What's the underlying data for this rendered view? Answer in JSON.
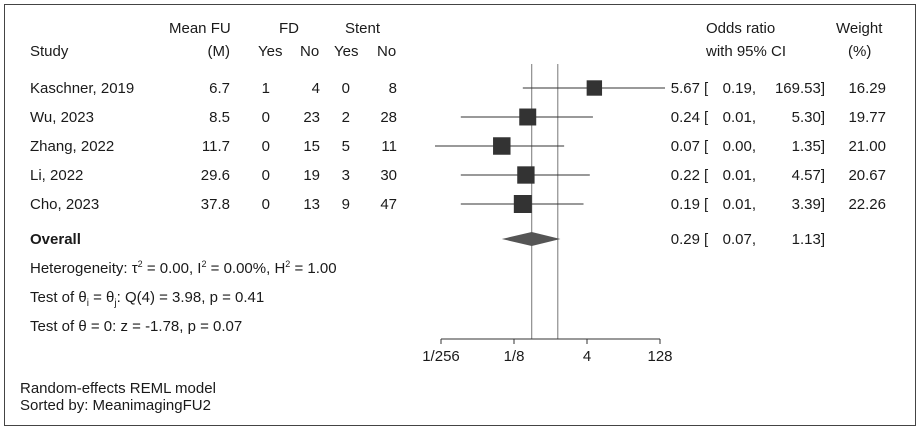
{
  "header": {
    "group_meanfu": "Mean FU",
    "group_fd": "FD",
    "group_stent": "Stent",
    "study": "Study",
    "meanfu_unit": "(M)",
    "yes": "Yes",
    "no": "No",
    "or_title": "Odds ratio",
    "or_subtitle": "with 95% CI",
    "weight_title": "Weight",
    "weight_unit": "(%)"
  },
  "rows": [
    {
      "study": "Kaschner, 2019",
      "mean_fu": "6.7",
      "fd_yes": "1",
      "fd_no": "4",
      "stent_yes": "0",
      "stent_no": "8",
      "or": "5.67",
      "ci_low": "0.19,",
      "ci_high": "169.53]",
      "weight": "16.29"
    },
    {
      "study": "Wu, 2023",
      "mean_fu": "8.5",
      "fd_yes": "0",
      "fd_no": "23",
      "stent_yes": "2",
      "stent_no": "28",
      "or": "0.24",
      "ci_low": "0.01,",
      "ci_high": "5.30]",
      "weight": "19.77"
    },
    {
      "study": "Zhang, 2022",
      "mean_fu": "11.7",
      "fd_yes": "0",
      "fd_no": "15",
      "stent_yes": "5",
      "stent_no": "11",
      "or": "0.07",
      "ci_low": "0.00,",
      "ci_high": "1.35]",
      "weight": "21.00"
    },
    {
      "study": "Li, 2022",
      "mean_fu": "29.6",
      "fd_yes": "0",
      "fd_no": "19",
      "stent_yes": "3",
      "stent_no": "30",
      "or": "0.22",
      "ci_low": "0.01,",
      "ci_high": "4.57]",
      "weight": "20.67"
    },
    {
      "study": "Cho, 2023",
      "mean_fu": "37.8",
      "fd_yes": "0",
      "fd_no": "13",
      "stent_yes": "9",
      "stent_no": "47",
      "or": "0.19",
      "ci_low": "0.01,",
      "ci_high": "3.39]",
      "weight": "22.26"
    }
  ],
  "overall": {
    "label": "Overall",
    "or": "0.29",
    "ci_low": "0.07,",
    "ci_high": "1.13]"
  },
  "stats": {
    "heterogeneity_a": "Heterogeneity: τ",
    "heterogeneity_b": " = 0.00, I",
    "heterogeneity_c": " = 0.00%, H",
    "heterogeneity_d": " = 1.00",
    "sq": "2",
    "test_theta_a": "Test of θ",
    "test_theta_i": "i",
    "test_theta_b": " = θ",
    "test_theta_j": "j",
    "test_theta_c": ": Q(4) = 3.98, p = 0.41",
    "test_zero": "Test of θ = 0: z = -1.78, p = 0.07"
  },
  "footer": {
    "model": "Random-effects REML model",
    "sorted": "Sorted by: MeanimagingFU2"
  },
  "chart_data": {
    "type": "forest",
    "x_scale": "log2",
    "x_ticks": [
      {
        "value": 0.00390625,
        "label": "1/256"
      },
      {
        "value": 0.125,
        "label": "1/8"
      },
      {
        "value": 4,
        "label": "4"
      },
      {
        "value": 128,
        "label": "128"
      }
    ],
    "xlim": [
      0.0025,
      200
    ],
    "null_line": 1,
    "overall_line": 0.29,
    "studies": [
      {
        "or": 5.67,
        "lo": 0.19,
        "hi": 169.53,
        "weight": 16.29
      },
      {
        "or": 0.24,
        "lo": 0.01,
        "hi": 5.3,
        "weight": 19.77
      },
      {
        "or": 0.07,
        "lo": 0.0028,
        "hi": 1.35,
        "weight": 21.0
      },
      {
        "or": 0.22,
        "lo": 0.01,
        "hi": 4.57,
        "weight": 20.67
      },
      {
        "or": 0.19,
        "lo": 0.01,
        "hi": 3.39,
        "weight": 22.26
      }
    ],
    "overall": {
      "or": 0.29,
      "lo": 0.07,
      "hi": 1.13
    },
    "marker_color": "#333333",
    "diamond_color": "#555555"
  }
}
